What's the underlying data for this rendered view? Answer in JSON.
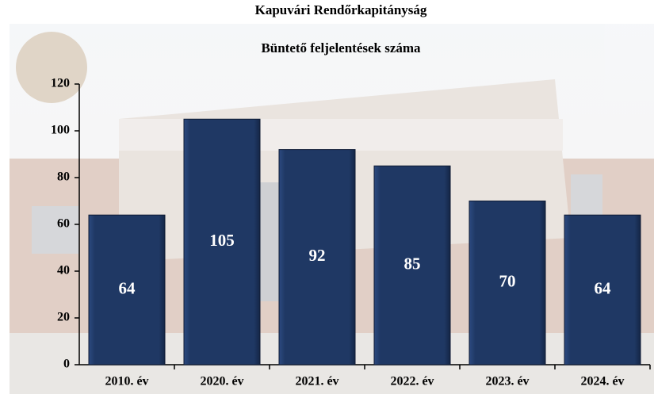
{
  "chart_data": {
    "type": "bar",
    "title": "Kapuvári Rendőrkapitányság",
    "subtitle": "Büntető feljelentések száma",
    "categories": [
      "2010. év",
      "2020. év",
      "2021. év",
      "2022. év",
      "2023. év",
      "2024. év"
    ],
    "values": [
      64,
      105,
      92,
      85,
      70,
      64
    ],
    "color": "#1f3864",
    "ylim": [
      0,
      120
    ],
    "yticks": [
      0,
      20,
      40,
      60,
      80,
      100,
      120
    ]
  }
}
